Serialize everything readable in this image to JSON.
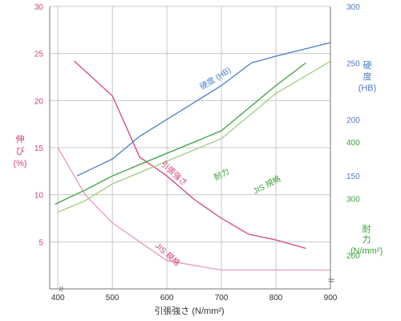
{
  "colors": {
    "grid": "#c8c8c8",
    "axis": "#777777",
    "text": "#333333",
    "elongation": "#d6457a",
    "elongation_jis": "#e99ab8",
    "hardness": "#4a7fc9",
    "yield": "#3aa23a",
    "yield_jis": "#9ccf7e",
    "break_mark": "#666666"
  },
  "chart_data": {
    "type": "line",
    "grid": true,
    "x_axis": {
      "label": "引張強さ (N/mm²)",
      "ticks": [
        "400",
        "500",
        "600",
        "700",
        "800",
        "900"
      ],
      "range": [
        385,
        900
      ],
      "break_mark": "≈"
    },
    "left_axis": {
      "label_lines": [
        "伸",
        "び",
        "(%)"
      ],
      "ticks": [
        "30",
        "25",
        "20",
        "15",
        "10",
        "5"
      ],
      "range": [
        0,
        30
      ],
      "break_mark": "≈"
    },
    "right_axis_hardness": {
      "label_lines": [
        "硬",
        "度",
        "(HB)"
      ],
      "ticks": [
        "300",
        "250",
        "200",
        "150"
      ],
      "range": [
        50,
        300
      ]
    },
    "right_axis_yield": {
      "label_lines": [
        "耐",
        "力",
        "(N/mm²)"
      ],
      "ticks": [
        "400",
        "300",
        "200"
      ],
      "range": [
        140,
        640
      ]
    },
    "series": [
      {
        "key": "elongation",
        "axis": "left",
        "color_key": "elongation",
        "x": [
          430,
          500,
          550,
          600,
          650,
          700,
          750,
          800,
          855
        ],
        "y": [
          24.2,
          20.5,
          14.0,
          12.0,
          9.5,
          7.5,
          5.8,
          5.2,
          4.3
        ]
      },
      {
        "key": "elongation_jis",
        "axis": "left",
        "color_key": "elongation_jis",
        "x": [
          400,
          450,
          500,
          550,
          600,
          650,
          700,
          750,
          800,
          900
        ],
        "y": [
          15.0,
          10.0,
          7.0,
          5.0,
          3.0,
          2.5,
          2.0,
          2.0,
          2.0,
          2.0
        ]
      },
      {
        "key": "hardness",
        "axis": "hardness",
        "color_key": "hardness",
        "x": [
          435,
          500,
          550,
          600,
          650,
          700,
          755,
          800,
          900
        ],
        "y": [
          150,
          165,
          185,
          200,
          215,
          230,
          250,
          256,
          268
        ]
      },
      {
        "key": "yield",
        "axis": "yield",
        "color_key": "yield",
        "x": [
          395,
          450,
          500,
          550,
          600,
          650,
          700,
          750,
          800,
          855
        ],
        "y": [
          290,
          315,
          340,
          360,
          380,
          400,
          420,
          460,
          500,
          540
        ]
      },
      {
        "key": "yield_jis",
        "axis": "yield",
        "color_key": "yield_jis",
        "x": [
          400,
          450,
          500,
          550,
          600,
          650,
          700,
          750,
          800,
          900
        ],
        "y": [
          276,
          296,
          326,
          346,
          366,
          386,
          406,
          446,
          486,
          543
        ]
      }
    ],
    "annotations": {
      "hardness": "硬度 (HB)",
      "tensile": "引張強さ",
      "yield": "耐力",
      "yield_jis": "JIS 規格",
      "elongation_jis": "JIS 規格"
    }
  }
}
